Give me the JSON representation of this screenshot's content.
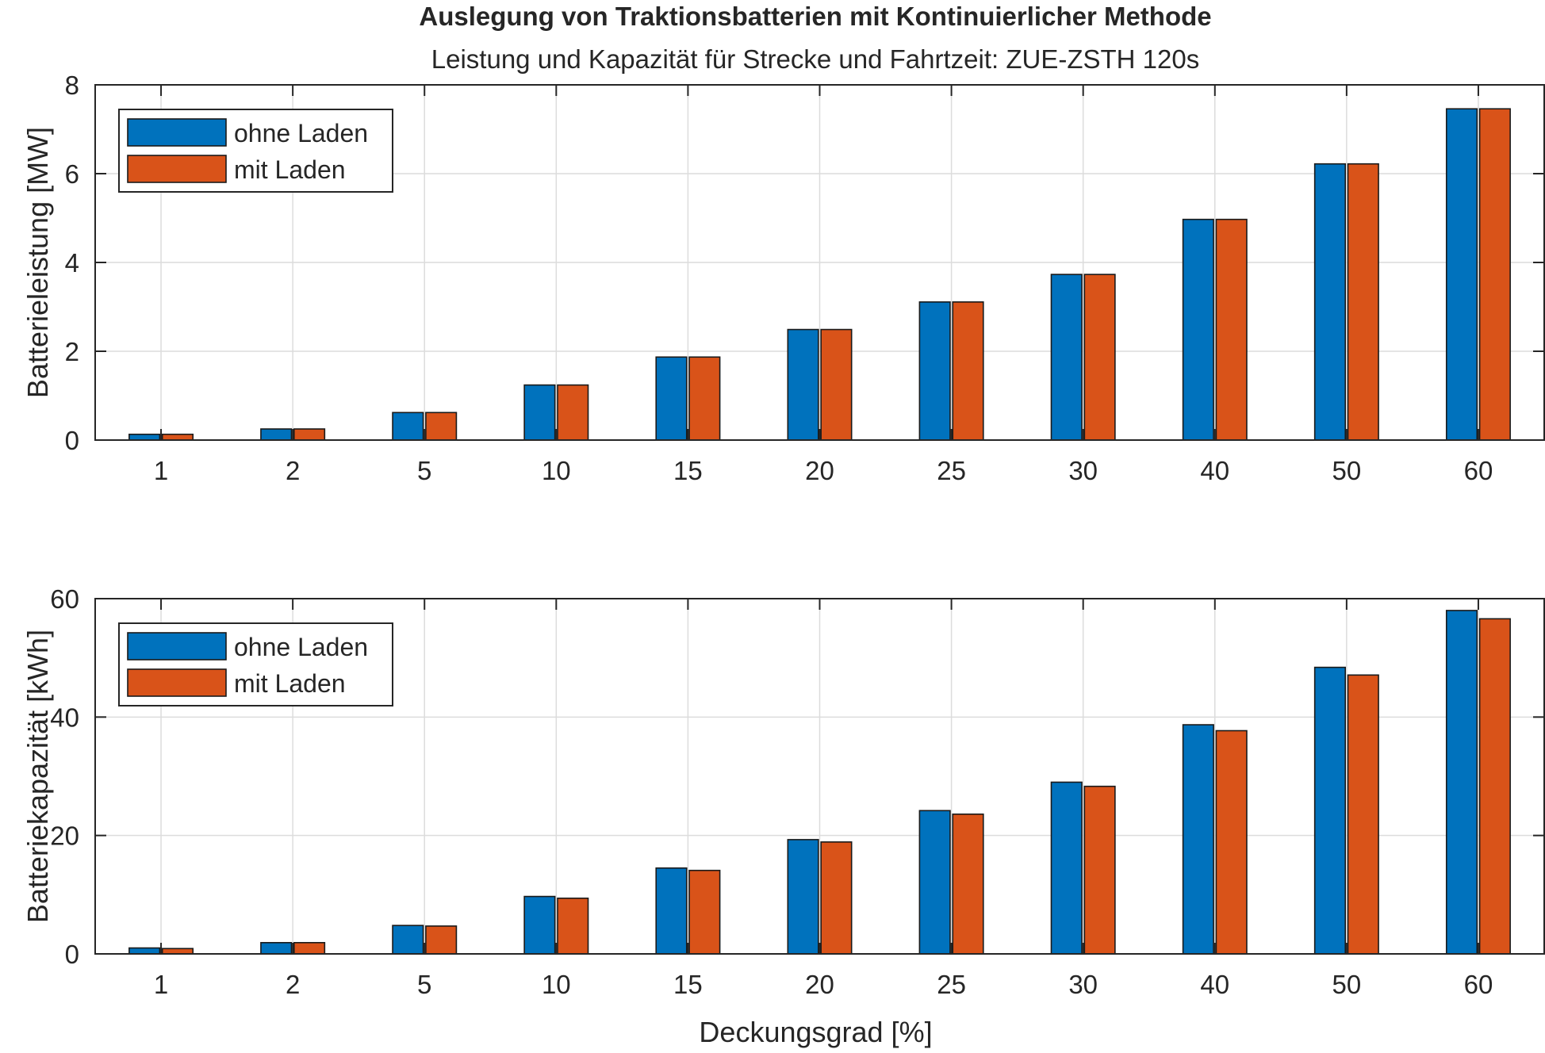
{
  "figure": {
    "title": "Auslegung von Traktionsbatterien mit Kontinuierlicher Methode",
    "subtitle": "Leistung und Kapazität für Strecke und Fahrtzeit: ZUE-ZSTH 120s"
  },
  "colors": {
    "series_1": "#0072BD",
    "series_2": "#D95319",
    "grid": "#dcdcdc",
    "axis": "#262626"
  },
  "chart_data": [
    {
      "type": "bar",
      "categories": [
        "1",
        "2",
        "5",
        "10",
        "15",
        "20",
        "25",
        "30",
        "40",
        "50",
        "60"
      ],
      "series": [
        {
          "name": "ohne Laden",
          "values": [
            0.13,
            0.25,
            0.62,
            1.24,
            1.87,
            2.49,
            3.11,
            3.73,
            4.97,
            6.22,
            7.46
          ]
        },
        {
          "name": "mit Laden",
          "values": [
            0.13,
            0.25,
            0.62,
            1.24,
            1.87,
            2.49,
            3.11,
            3.73,
            4.97,
            6.22,
            7.46
          ]
        }
      ],
      "xlabel": "",
      "ylabel": "Batterieleistung [MW]",
      "ylim": [
        0,
        8
      ],
      "yticks": [
        0,
        2,
        4,
        6,
        8
      ],
      "grid": true,
      "legend_position": "top-left"
    },
    {
      "type": "bar",
      "categories": [
        "1",
        "2",
        "5",
        "10",
        "15",
        "20",
        "25",
        "30",
        "40",
        "50",
        "60"
      ],
      "series": [
        {
          "name": "ohne Laden",
          "values": [
            1.0,
            1.9,
            4.8,
            9.7,
            14.5,
            19.3,
            24.2,
            29.0,
            38.7,
            48.4,
            58.0
          ]
        },
        {
          "name": "mit Laden",
          "values": [
            0.9,
            1.9,
            4.7,
            9.4,
            14.1,
            18.9,
            23.6,
            28.3,
            37.7,
            47.1,
            56.6
          ]
        }
      ],
      "xlabel": "Deckungsgrad [%]",
      "ylabel": "Batteriekapazität [kWh]",
      "ylim": [
        0,
        60
      ],
      "yticks": [
        0,
        20,
        40,
        60
      ],
      "grid": true,
      "legend_position": "top-left"
    }
  ]
}
